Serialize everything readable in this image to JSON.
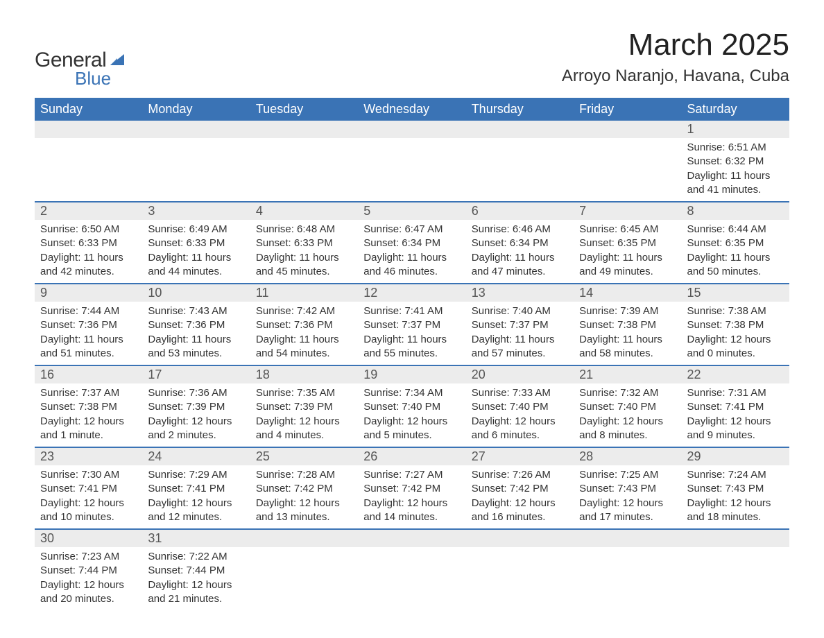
{
  "logo": {
    "text_general": "General",
    "text_blue": "Blue",
    "sail_color": "#3a73b5"
  },
  "header": {
    "month_title": "March 2025",
    "location": "Arroyo Naranjo, Havana, Cuba"
  },
  "colors": {
    "header_bg": "#3a73b5",
    "header_text": "#ffffff",
    "daynum_bg": "#ececec",
    "row_divider": "#3a73b5",
    "body_text": "#333333",
    "page_bg": "#ffffff"
  },
  "day_headers": [
    "Sunday",
    "Monday",
    "Tuesday",
    "Wednesday",
    "Thursday",
    "Friday",
    "Saturday"
  ],
  "weeks": [
    [
      null,
      null,
      null,
      null,
      null,
      null,
      {
        "n": "1",
        "sunrise": "Sunrise: 6:51 AM",
        "sunset": "Sunset: 6:32 PM",
        "day1": "Daylight: 11 hours",
        "day2": "and 41 minutes."
      }
    ],
    [
      {
        "n": "2",
        "sunrise": "Sunrise: 6:50 AM",
        "sunset": "Sunset: 6:33 PM",
        "day1": "Daylight: 11 hours",
        "day2": "and 42 minutes."
      },
      {
        "n": "3",
        "sunrise": "Sunrise: 6:49 AM",
        "sunset": "Sunset: 6:33 PM",
        "day1": "Daylight: 11 hours",
        "day2": "and 44 minutes."
      },
      {
        "n": "4",
        "sunrise": "Sunrise: 6:48 AM",
        "sunset": "Sunset: 6:33 PM",
        "day1": "Daylight: 11 hours",
        "day2": "and 45 minutes."
      },
      {
        "n": "5",
        "sunrise": "Sunrise: 6:47 AM",
        "sunset": "Sunset: 6:34 PM",
        "day1": "Daylight: 11 hours",
        "day2": "and 46 minutes."
      },
      {
        "n": "6",
        "sunrise": "Sunrise: 6:46 AM",
        "sunset": "Sunset: 6:34 PM",
        "day1": "Daylight: 11 hours",
        "day2": "and 47 minutes."
      },
      {
        "n": "7",
        "sunrise": "Sunrise: 6:45 AM",
        "sunset": "Sunset: 6:35 PM",
        "day1": "Daylight: 11 hours",
        "day2": "and 49 minutes."
      },
      {
        "n": "8",
        "sunrise": "Sunrise: 6:44 AM",
        "sunset": "Sunset: 6:35 PM",
        "day1": "Daylight: 11 hours",
        "day2": "and 50 minutes."
      }
    ],
    [
      {
        "n": "9",
        "sunrise": "Sunrise: 7:44 AM",
        "sunset": "Sunset: 7:36 PM",
        "day1": "Daylight: 11 hours",
        "day2": "and 51 minutes."
      },
      {
        "n": "10",
        "sunrise": "Sunrise: 7:43 AM",
        "sunset": "Sunset: 7:36 PM",
        "day1": "Daylight: 11 hours",
        "day2": "and 53 minutes."
      },
      {
        "n": "11",
        "sunrise": "Sunrise: 7:42 AM",
        "sunset": "Sunset: 7:36 PM",
        "day1": "Daylight: 11 hours",
        "day2": "and 54 minutes."
      },
      {
        "n": "12",
        "sunrise": "Sunrise: 7:41 AM",
        "sunset": "Sunset: 7:37 PM",
        "day1": "Daylight: 11 hours",
        "day2": "and 55 minutes."
      },
      {
        "n": "13",
        "sunrise": "Sunrise: 7:40 AM",
        "sunset": "Sunset: 7:37 PM",
        "day1": "Daylight: 11 hours",
        "day2": "and 57 minutes."
      },
      {
        "n": "14",
        "sunrise": "Sunrise: 7:39 AM",
        "sunset": "Sunset: 7:38 PM",
        "day1": "Daylight: 11 hours",
        "day2": "and 58 minutes."
      },
      {
        "n": "15",
        "sunrise": "Sunrise: 7:38 AM",
        "sunset": "Sunset: 7:38 PM",
        "day1": "Daylight: 12 hours",
        "day2": "and 0 minutes."
      }
    ],
    [
      {
        "n": "16",
        "sunrise": "Sunrise: 7:37 AM",
        "sunset": "Sunset: 7:38 PM",
        "day1": "Daylight: 12 hours",
        "day2": "and 1 minute."
      },
      {
        "n": "17",
        "sunrise": "Sunrise: 7:36 AM",
        "sunset": "Sunset: 7:39 PM",
        "day1": "Daylight: 12 hours",
        "day2": "and 2 minutes."
      },
      {
        "n": "18",
        "sunrise": "Sunrise: 7:35 AM",
        "sunset": "Sunset: 7:39 PM",
        "day1": "Daylight: 12 hours",
        "day2": "and 4 minutes."
      },
      {
        "n": "19",
        "sunrise": "Sunrise: 7:34 AM",
        "sunset": "Sunset: 7:40 PM",
        "day1": "Daylight: 12 hours",
        "day2": "and 5 minutes."
      },
      {
        "n": "20",
        "sunrise": "Sunrise: 7:33 AM",
        "sunset": "Sunset: 7:40 PM",
        "day1": "Daylight: 12 hours",
        "day2": "and 6 minutes."
      },
      {
        "n": "21",
        "sunrise": "Sunrise: 7:32 AM",
        "sunset": "Sunset: 7:40 PM",
        "day1": "Daylight: 12 hours",
        "day2": "and 8 minutes."
      },
      {
        "n": "22",
        "sunrise": "Sunrise: 7:31 AM",
        "sunset": "Sunset: 7:41 PM",
        "day1": "Daylight: 12 hours",
        "day2": "and 9 minutes."
      }
    ],
    [
      {
        "n": "23",
        "sunrise": "Sunrise: 7:30 AM",
        "sunset": "Sunset: 7:41 PM",
        "day1": "Daylight: 12 hours",
        "day2": "and 10 minutes."
      },
      {
        "n": "24",
        "sunrise": "Sunrise: 7:29 AM",
        "sunset": "Sunset: 7:41 PM",
        "day1": "Daylight: 12 hours",
        "day2": "and 12 minutes."
      },
      {
        "n": "25",
        "sunrise": "Sunrise: 7:28 AM",
        "sunset": "Sunset: 7:42 PM",
        "day1": "Daylight: 12 hours",
        "day2": "and 13 minutes."
      },
      {
        "n": "26",
        "sunrise": "Sunrise: 7:27 AM",
        "sunset": "Sunset: 7:42 PM",
        "day1": "Daylight: 12 hours",
        "day2": "and 14 minutes."
      },
      {
        "n": "27",
        "sunrise": "Sunrise: 7:26 AM",
        "sunset": "Sunset: 7:42 PM",
        "day1": "Daylight: 12 hours",
        "day2": "and 16 minutes."
      },
      {
        "n": "28",
        "sunrise": "Sunrise: 7:25 AM",
        "sunset": "Sunset: 7:43 PM",
        "day1": "Daylight: 12 hours",
        "day2": "and 17 minutes."
      },
      {
        "n": "29",
        "sunrise": "Sunrise: 7:24 AM",
        "sunset": "Sunset: 7:43 PM",
        "day1": "Daylight: 12 hours",
        "day2": "and 18 minutes."
      }
    ],
    [
      {
        "n": "30",
        "sunrise": "Sunrise: 7:23 AM",
        "sunset": "Sunset: 7:44 PM",
        "day1": "Daylight: 12 hours",
        "day2": "and 20 minutes."
      },
      {
        "n": "31",
        "sunrise": "Sunrise: 7:22 AM",
        "sunset": "Sunset: 7:44 PM",
        "day1": "Daylight: 12 hours",
        "day2": "and 21 minutes."
      },
      null,
      null,
      null,
      null,
      null
    ]
  ]
}
